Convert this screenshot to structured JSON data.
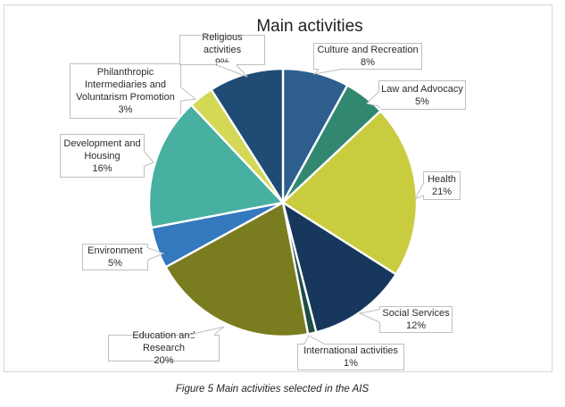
{
  "figure": {
    "caption": "Figure 5 Main activities selected in the AIS"
  },
  "chart_data": {
    "type": "pie",
    "title": "Main activities",
    "categories": [
      "Culture and Recreation",
      "Law and Advocacy",
      "Health",
      "Social Services",
      "International activities",
      "Education and Research",
      "Environment",
      "Development and Housing",
      "Philanthropic Intermediaries and Voluntarism Promotion",
      "Religious activities"
    ],
    "values": [
      8,
      5,
      21,
      12,
      1,
      20,
      5,
      16,
      3,
      9
    ],
    "unit": "percent",
    "colors": [
      "#2D5E8E",
      "#328770",
      "#C9CC3F",
      "#17375C",
      "#1E4D44",
      "#7A7C20",
      "#3478BD",
      "#47B0A0",
      "#D3D857",
      "#1F4B75"
    ],
    "start_angle_deg": 0,
    "direction": "clockwise",
    "legend": "none",
    "label_style": "callout boxes with category name and percent"
  },
  "labels": [
    {
      "name": "Culture and Recreation",
      "value": "8%"
    },
    {
      "name": "Law and Advocacy",
      "value": "5%"
    },
    {
      "name": "Health",
      "value": "21%"
    },
    {
      "name": "Social Services",
      "value": "12%"
    },
    {
      "name": "International activities",
      "value": "1%"
    },
    {
      "name": "Education and Research",
      "value": "20%"
    },
    {
      "name": "Environment",
      "value": "5%"
    },
    {
      "name": "Development and Housing",
      "value": "16%"
    },
    {
      "name": "Philanthropic Intermediaries and Voluntarism Promotion",
      "value": "3%"
    },
    {
      "name": "Religious activities",
      "value": "9%"
    }
  ]
}
